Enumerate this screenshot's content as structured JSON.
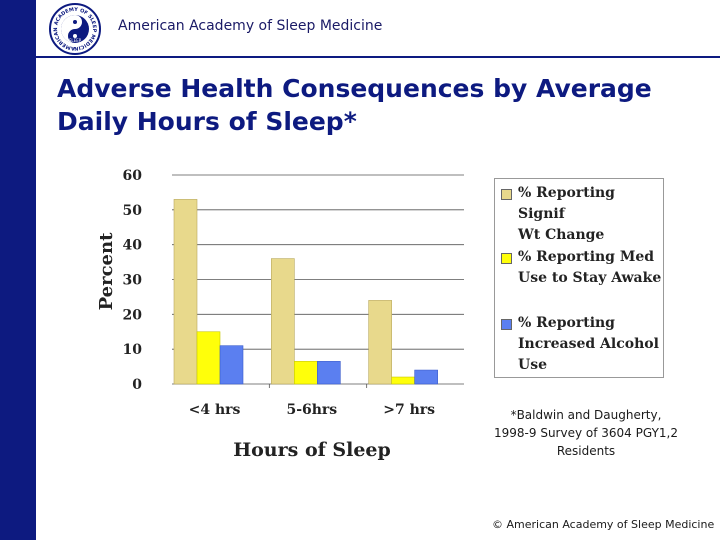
{
  "header": {
    "org_name": "American Academy of Sleep Medicine",
    "logo_text": "AMERICAN ACADEMY OF SLEEP MEDICINE",
    "logo_center": "SLEEP"
  },
  "slide": {
    "title_line1": "Adverse Health Consequences by Average",
    "title_line2": "Daily Hours of Sleep*"
  },
  "colors": {
    "sidebar": "#0d1a80",
    "series1": "#e8d98c",
    "series2": "#ffff0a",
    "series3": "#5b7ff0"
  },
  "chart_data": {
    "type": "bar",
    "categories": [
      "<4 hrs",
      "5-6hrs",
      ">7 hrs"
    ],
    "series": [
      {
        "name": "% Reporting Signif Wt Change",
        "values": [
          53,
          36,
          24
        ]
      },
      {
        "name": "% Reporting Med Use to Stay Awake",
        "values": [
          15,
          6.5,
          2
        ]
      },
      {
        "name": "% Reporting Increased Alcohol Use",
        "values": [
          11,
          6.5,
          4
        ]
      }
    ],
    "xlabel": "Hours of Sleep",
    "ylabel": "Percent",
    "ylim": [
      0,
      60
    ],
    "yticks": [
      0,
      10,
      20,
      30,
      40,
      50,
      60
    ],
    "grid": true,
    "legend_position": "right"
  },
  "legend": {
    "items": [
      {
        "line1": "% Reporting Signif",
        "line2": "Wt Change",
        "line3": ""
      },
      {
        "line1": "% Reporting Med",
        "line2": "Use to Stay Awake",
        "line3": ""
      },
      {
        "line1": "% Reporting",
        "line2": "Increased Alcohol",
        "line3": "Use"
      }
    ]
  },
  "footnote": {
    "line1": "*Baldwin and Daugherty,",
    "line2": "1998-9 Survey of 3604 PGY1,2",
    "line3": "Residents"
  },
  "footer": {
    "copyright": "© American Academy of Sleep Medicine"
  }
}
